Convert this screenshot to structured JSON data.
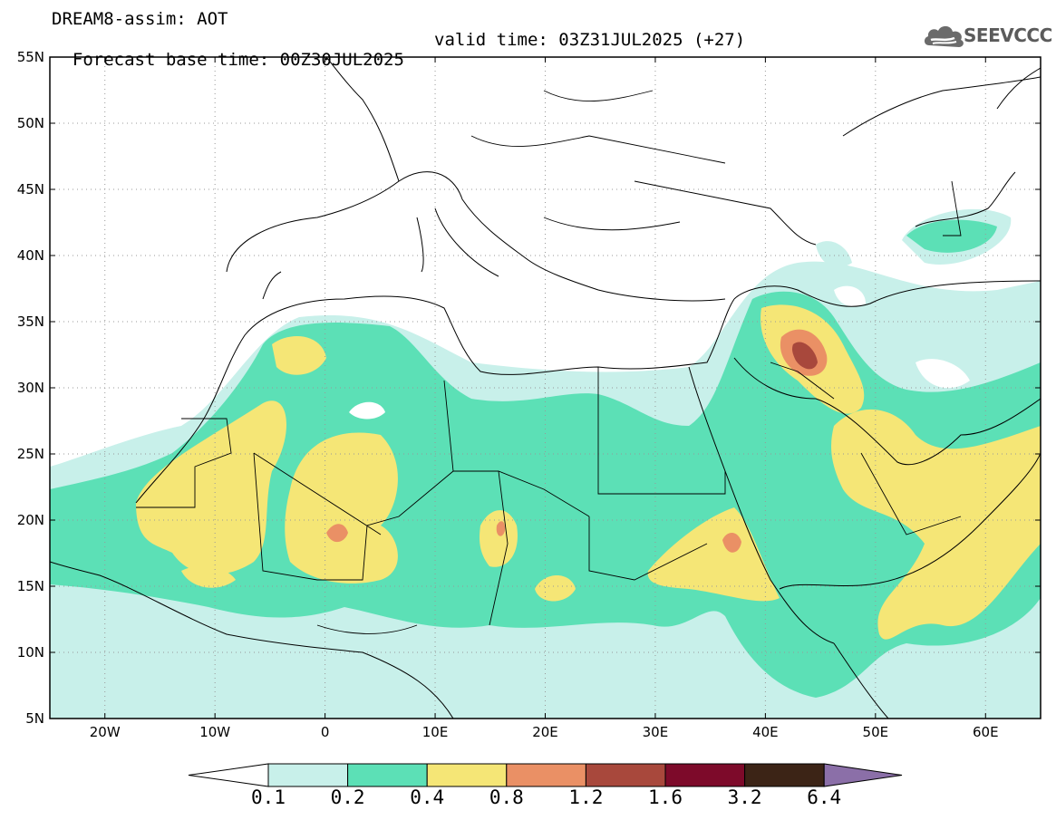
{
  "header": {
    "line1": "DREAM8-assim: AOT",
    "base_time": "Forecast base time: 00Z30JUL2025",
    "valid_time": "valid time: 03Z31JUL2025 (+27)"
  },
  "logo": {
    "text": "SEEVCCC",
    "icon": "cloud-logo-icon"
  },
  "map": {
    "lon_range": [
      -25,
      65
    ],
    "lat_range": [
      5,
      55
    ],
    "lat_labels": [
      "55N",
      "50N",
      "45N",
      "40N",
      "35N",
      "30N",
      "25N",
      "20N",
      "15N",
      "10N",
      "5N"
    ],
    "lon_labels": [
      "20W",
      "10W",
      "0",
      "10E",
      "20E",
      "30E",
      "40E",
      "50E",
      "60E"
    ],
    "grid": "dotted"
  },
  "colorbar": {
    "labels": [
      "0.1",
      "0.2",
      "0.4",
      "0.8",
      "1.2",
      "1.6",
      "3.2",
      "6.4"
    ],
    "colors": [
      "#c8f0ea",
      "#5ce0b6",
      "#f5e676",
      "#ea9065",
      "#a8483c",
      "#7d0a2a",
      "#3c2416",
      "#8b6fa8"
    ],
    "under_color": "#ffffff"
  },
  "field_colors": {
    "l1": "#c8f0ea",
    "l2": "#5ce0b6",
    "l3": "#f5e676",
    "l4": "#ea9065",
    "l5": "#a8483c"
  }
}
